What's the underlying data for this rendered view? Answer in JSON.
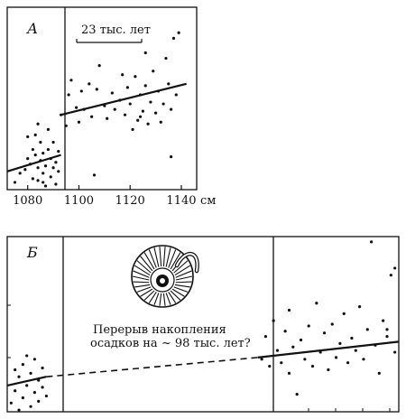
{
  "chart_data": [
    {
      "panel_label": "А",
      "type": "scatter",
      "xlabel_unit": "см",
      "x_ticks": [
        1080,
        1100,
        1120,
        1140
      ],
      "xlim": [
        1072,
        1146
      ],
      "ylim": [
        0,
        1
      ],
      "grid": false,
      "scale_bar_label": "23 тыс. лет",
      "break_x": 1093,
      "points_left": [
        [
          1075,
          0.04
        ],
        [
          1077,
          0.09
        ],
        [
          1079,
          0.11
        ],
        [
          1080,
          0.17
        ],
        [
          1081,
          0.14
        ],
        [
          1082,
          0.22
        ],
        [
          1082,
          0.06
        ],
        [
          1083,
          0.3
        ],
        [
          1083,
          0.19
        ],
        [
          1084,
          0.05
        ],
        [
          1084,
          0.12
        ],
        [
          1085,
          0.26
        ],
        [
          1085,
          0.16
        ],
        [
          1086,
          0.2
        ],
        [
          1086,
          0.09
        ],
        [
          1087,
          0.13
        ],
        [
          1087,
          0.02
        ],
        [
          1088,
          0.33
        ],
        [
          1088,
          0.22
        ],
        [
          1089,
          0.17
        ],
        [
          1089,
          0.07
        ],
        [
          1090,
          0.12
        ],
        [
          1090,
          0.26
        ],
        [
          1091,
          0.03
        ],
        [
          1091,
          0.15
        ],
        [
          1092,
          0.21
        ],
        [
          1092,
          0.1
        ],
        [
          1084,
          0.36
        ],
        [
          1080,
          0.29
        ],
        [
          1086,
          0.04
        ]
      ],
      "points_right": [
        [
          1093,
          0.41
        ],
        [
          1095,
          0.35
        ],
        [
          1096,
          0.52
        ],
        [
          1097,
          0.6
        ],
        [
          1099,
          0.45
        ],
        [
          1100,
          0.37
        ],
        [
          1101,
          0.54
        ],
        [
          1102,
          0.44
        ],
        [
          1104,
          0.58
        ],
        [
          1105,
          0.4
        ],
        [
          1106,
          0.08
        ],
        [
          1107,
          0.55
        ],
        [
          1108,
          0.68
        ],
        [
          1110,
          0.46
        ],
        [
          1111,
          0.39
        ],
        [
          1113,
          0.53
        ],
        [
          1114,
          0.44
        ],
        [
          1116,
          0.49
        ],
        [
          1117,
          0.63
        ],
        [
          1118,
          0.41
        ],
        [
          1119,
          0.56
        ],
        [
          1120,
          0.47
        ],
        [
          1121,
          0.33
        ],
        [
          1122,
          0.62
        ],
        [
          1123,
          0.38
        ],
        [
          1124,
          0.52
        ],
        [
          1125,
          0.43
        ],
        [
          1126,
          0.57
        ],
        [
          1127,
          0.36
        ],
        [
          1128,
          0.48
        ],
        [
          1129,
          0.65
        ],
        [
          1130,
          0.42
        ],
        [
          1131,
          0.54
        ],
        [
          1132,
          0.37
        ],
        [
          1133,
          0.47
        ],
        [
          1134,
          0.72
        ],
        [
          1135,
          0.58
        ],
        [
          1136,
          0.44
        ],
        [
          1137,
          0.83
        ],
        [
          1138,
          0.52
        ],
        [
          1139,
          0.86
        ],
        [
          1136,
          0.18
        ],
        [
          1126,
          0.75
        ],
        [
          1124,
          0.4
        ]
      ],
      "trend_left": [
        [
          1072,
          0.1
        ],
        [
          1093,
          0.19
        ]
      ],
      "trend_right": [
        [
          1093,
          0.41
        ],
        [
          1142,
          0.58
        ]
      ]
    },
    {
      "panel_label": "Б",
      "type": "scatter",
      "xlim": [
        0,
        100
      ],
      "ylim": [
        0,
        1
      ],
      "grid": false,
      "annotation": "Перерыв накопления осадков на ~ 98 тыс. лет?",
      "break_x_left": 10,
      "break_x_right": 64,
      "points_left": [
        [
          1,
          0.05
        ],
        [
          2,
          0.12
        ],
        [
          3,
          0.2
        ],
        [
          4,
          0.08
        ],
        [
          4,
          0.27
        ],
        [
          5,
          0.15
        ],
        [
          6,
          0.03
        ],
        [
          6,
          0.22
        ],
        [
          7,
          0.11
        ],
        [
          7,
          0.3
        ],
        [
          8,
          0.18
        ],
        [
          8,
          0.06
        ],
        [
          9,
          0.14
        ],
        [
          9,
          0.25
        ],
        [
          3,
          0.01
        ],
        [
          5,
          0.32
        ],
        [
          10,
          0.09
        ],
        [
          2,
          0.24
        ]
      ],
      "points_right": [
        [
          65,
          0.3
        ],
        [
          66,
          0.43
        ],
        [
          67,
          0.26
        ],
        [
          68,
          0.52
        ],
        [
          69,
          0.35
        ],
        [
          70,
          0.28
        ],
        [
          71,
          0.46
        ],
        [
          72,
          0.58
        ],
        [
          72,
          0.22
        ],
        [
          73,
          0.37
        ],
        [
          74,
          0.1
        ],
        [
          75,
          0.41
        ],
        [
          76,
          0.3
        ],
        [
          77,
          0.49
        ],
        [
          78,
          0.26
        ],
        [
          79,
          0.62
        ],
        [
          80,
          0.34
        ],
        [
          81,
          0.45
        ],
        [
          82,
          0.24
        ],
        [
          83,
          0.5
        ],
        [
          84,
          0.31
        ],
        [
          85,
          0.39
        ],
        [
          86,
          0.56
        ],
        [
          87,
          0.28
        ],
        [
          88,
          0.42
        ],
        [
          89,
          0.35
        ],
        [
          90,
          0.6
        ],
        [
          91,
          0.3
        ],
        [
          92,
          0.47
        ],
        [
          93,
          0.97
        ],
        [
          94,
          0.38
        ],
        [
          95,
          0.22
        ],
        [
          96,
          0.52
        ],
        [
          97,
          0.43
        ],
        [
          98,
          0.78
        ],
        [
          99,
          0.34
        ],
        [
          99,
          0.82
        ],
        [
          97,
          0.47
        ]
      ],
      "trend_left": [
        [
          0,
          0.15
        ],
        [
          10,
          0.2
        ]
      ],
      "trend_dashed": [
        [
          10,
          0.2
        ],
        [
          64,
          0.31
        ]
      ],
      "trend_right": [
        [
          64,
          0.31
        ],
        [
          100,
          0.4
        ]
      ]
    }
  ]
}
